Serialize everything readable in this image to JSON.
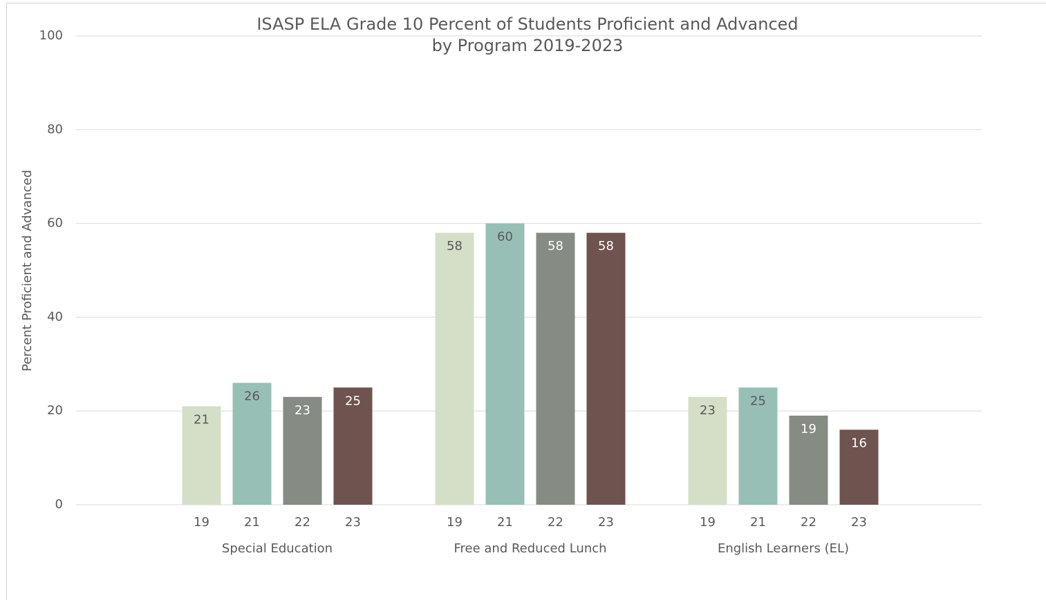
{
  "chart_data": {
    "type": "bar",
    "title": [
      "ISASP ELA Grade 10 Percent of Students Proficient and Advanced",
      "by Program 2019-2023"
    ],
    "y_label": "Percent Proficient and Advanced",
    "categories": [
      "Special Education",
      "Free and Reduced Lunch",
      "English Learners (EL)"
    ],
    "series": [
      {
        "name": "19",
        "color": "#d5dfc7",
        "label_color": "#595959",
        "values": [
          21,
          58,
          23
        ]
      },
      {
        "name": "21",
        "color": "#97bfb5",
        "label_color": "#595959",
        "values": [
          26,
          60,
          25
        ]
      },
      {
        "name": "22",
        "color": "#868b84",
        "label_color": "#ffffff",
        "values": [
          23,
          58,
          19
        ]
      },
      {
        "name": "23",
        "color": "#6e534e",
        "label_color": "#ffffff",
        "values": [
          25,
          58,
          16
        ]
      }
    ],
    "ylim": [
      0,
      100
    ],
    "yticks": [
      0,
      20,
      40,
      60,
      80,
      100
    ],
    "grid": true
  }
}
